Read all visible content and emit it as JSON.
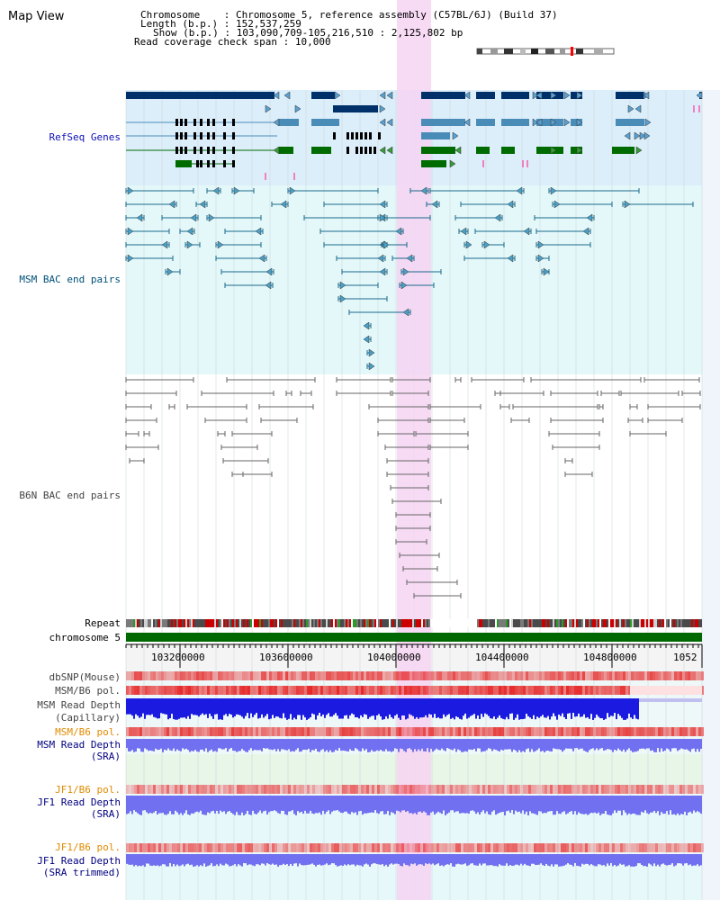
{
  "app": {
    "title": "Map View"
  },
  "info": {
    "chromosome_label": "Chromosome",
    "chromosome_value": "Chromosome 5, reference assembly (C57BL/6J) (Build 37)",
    "length_label": "Length (b.p.)",
    "length_value": "152,537,259",
    "show_label": "Show (b.p.)",
    "show_value": "103,090,709-105,216,510 : 2,125,802 bp",
    "span_label": "Read coverage check span",
    "span_value": "10,000"
  },
  "tracks": {
    "refseq": "RefSeq Genes",
    "msm_bac": "MSM BAC end pairs",
    "b6n_bac": "B6N BAC end pairs",
    "repeat": "Repeat",
    "chromosome": "chromosome 5",
    "dbsnp": "dbSNP(Mouse)",
    "msm_b6_pol_1": "MSM/B6 pol.",
    "msm_depth_cap_1": "MSM Read Depth",
    "msm_depth_cap_2": "(Capillary)",
    "msm_b6_pol_2": "MSM/B6 pol.",
    "msm_depth_sra_1": "MSM Read Depth",
    "msm_depth_sra_2": "(SRA)",
    "jf1_b6_pol_1": "JF1/B6 pol.",
    "jf1_depth_sra_1": "JF1 Read Depth",
    "jf1_depth_sra_2": "(SRA)",
    "jf1_b6_pol_2": "JF1/B6 pol.",
    "jf1_depth_trim_1": "JF1 Read Depth",
    "jf1_depth_trim_2": "(SRA trimmed)"
  },
  "axis": {
    "ticks": [
      "103200000",
      "103600000",
      "104000000",
      "104400000",
      "104800000",
      "1052"
    ]
  },
  "colors": {
    "refseq_bg": "#dceefa",
    "msm_bg": "#e4f8fa",
    "highlight": "#f6d4f2",
    "gene_dark": "#00306a",
    "gene_mid": "#4a8cb8",
    "gene_green": "#006c00",
    "chrom_green": "#006800",
    "msm_line": "#1a6a8a",
    "b6n_line": "#666666",
    "snp_red": "#e03030",
    "depth_blue": "#1a1ae0",
    "depth_light": "#7070f0"
  }
}
